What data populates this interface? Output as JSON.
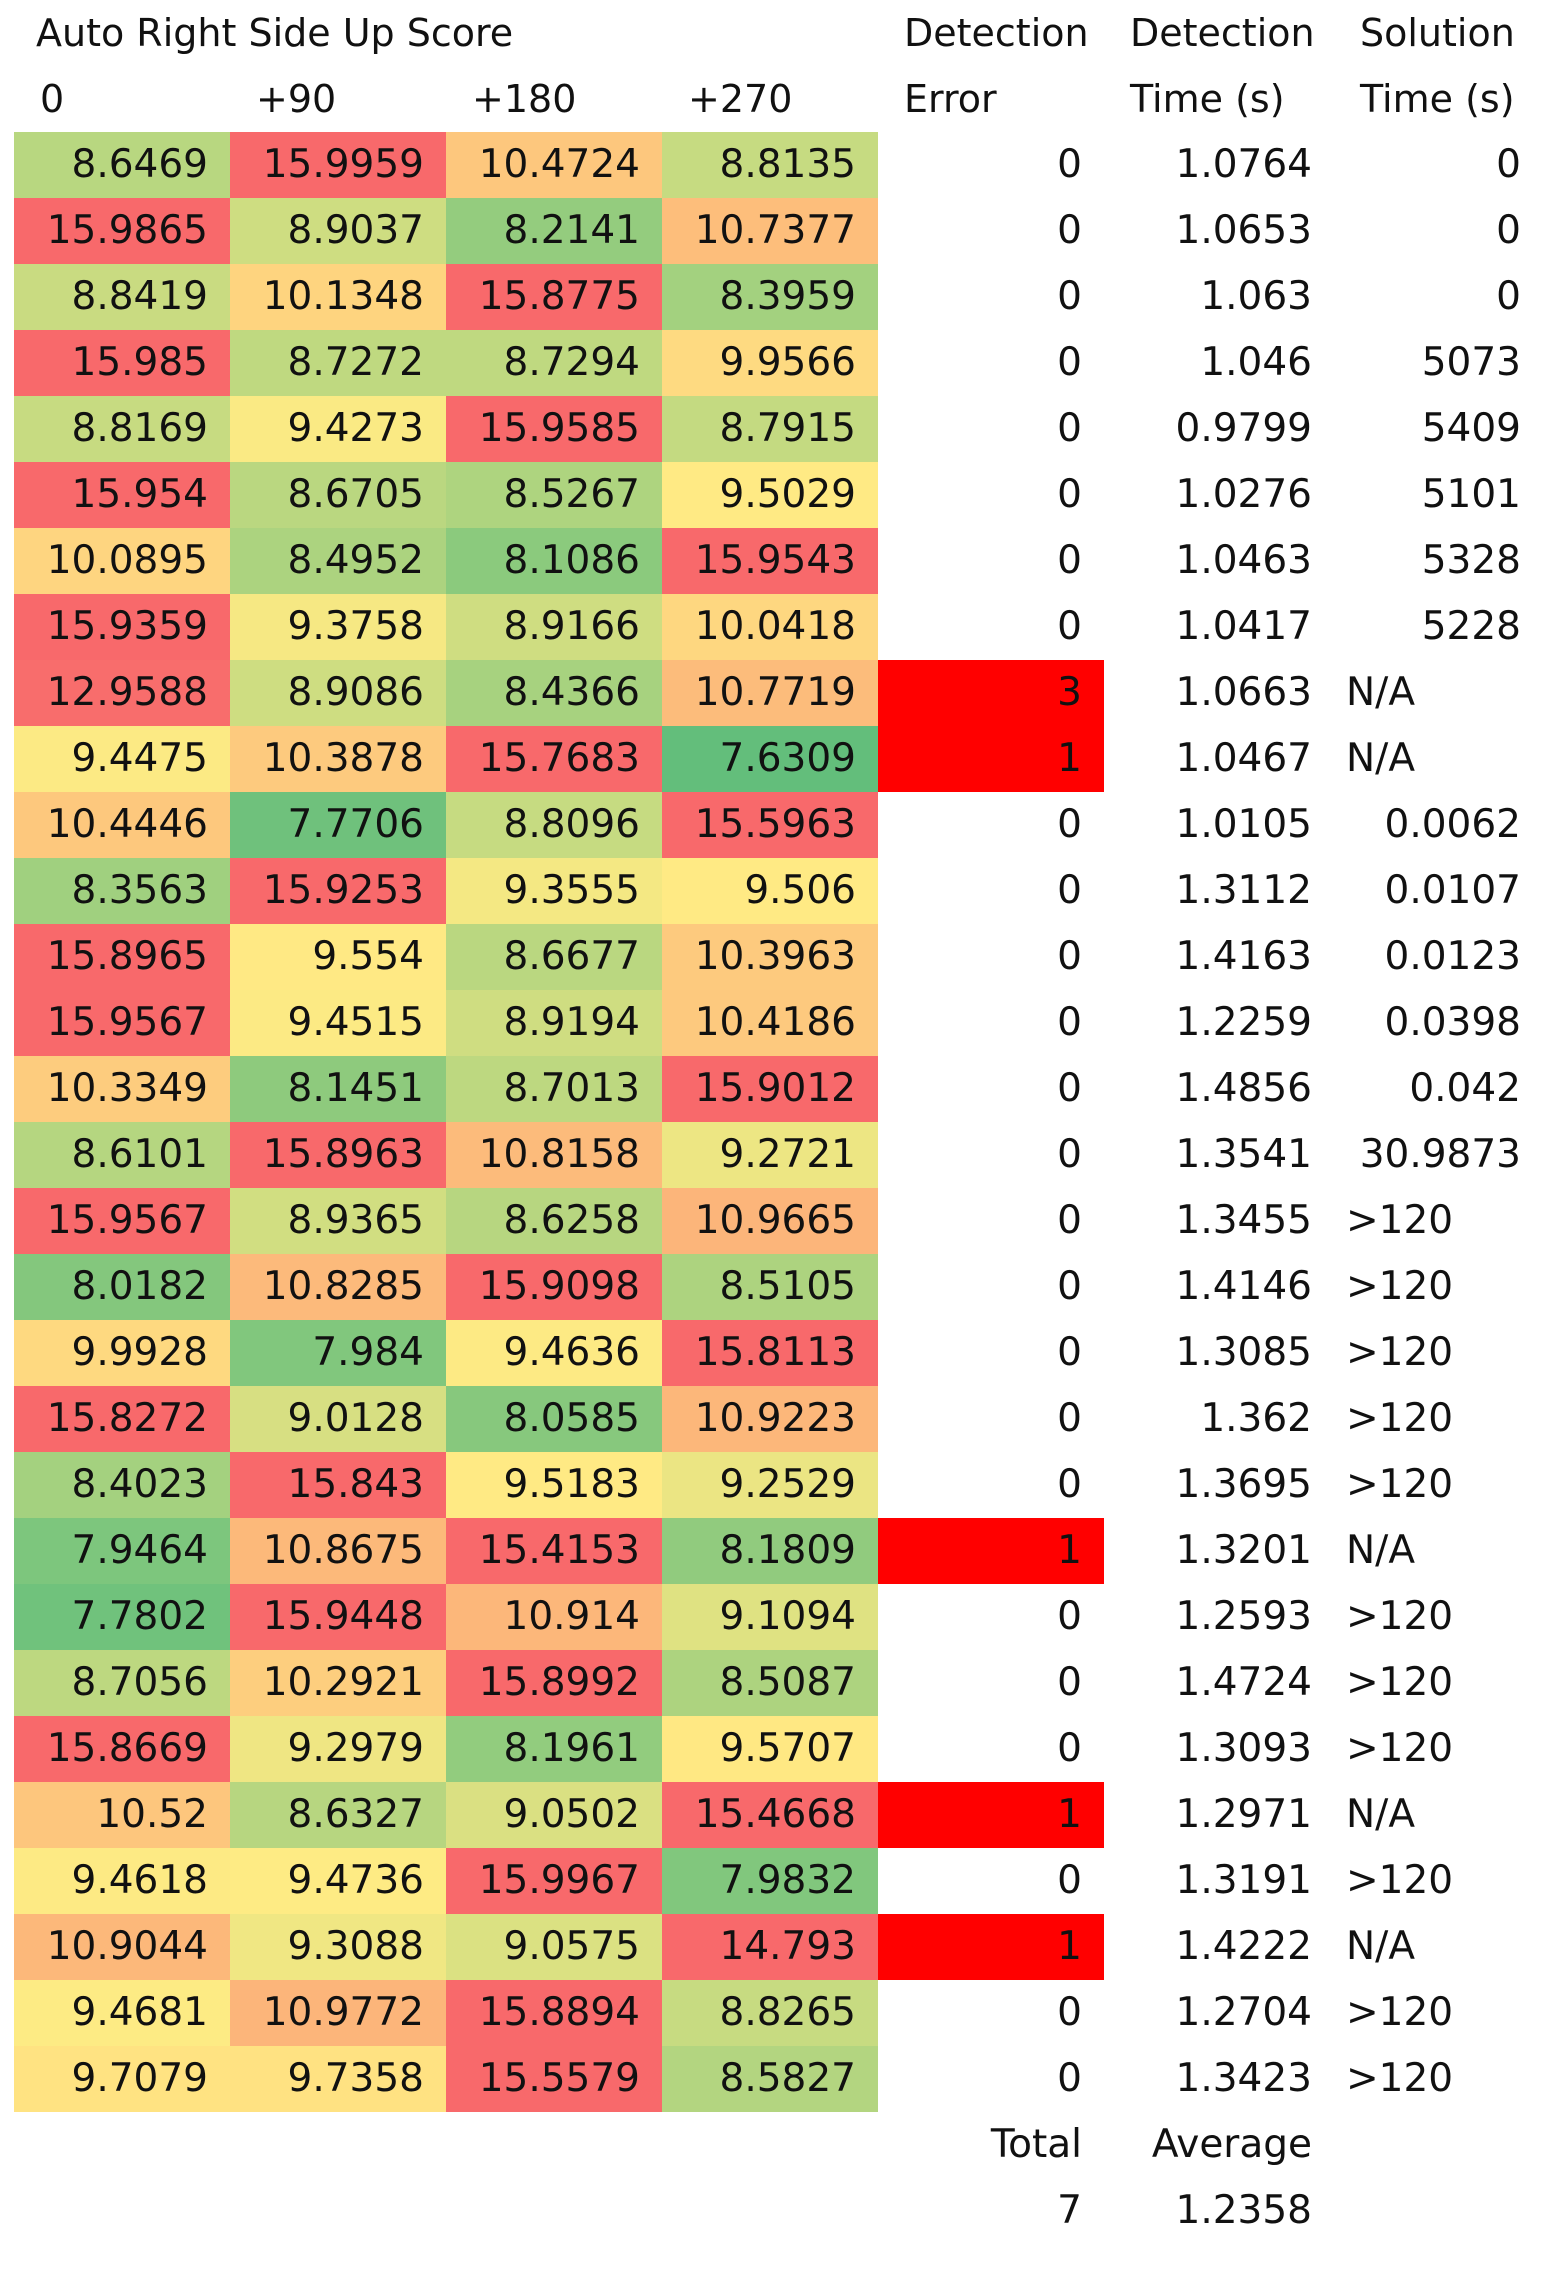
{
  "header": {
    "title": "Auto Right Side Up Score",
    "row1": [
      "",
      "",
      "",
      "",
      "Detection",
      "Detection",
      "Solution"
    ],
    "row2": [
      "0",
      "+90",
      "+180",
      "+270",
      "Error",
      "Time (s)",
      "Time (s)"
    ]
  },
  "colors": {
    "scale_low": "#63BE7B",
    "scale_mid": "#FFEB84",
    "scale_high": "#F8696B",
    "error_fill": "#FF0000"
  },
  "rows": [
    [
      "8.6469",
      "15.9959",
      "10.4724",
      "8.8135",
      "0",
      "1.0764",
      "0"
    ],
    [
      "15.9865",
      "8.9037",
      "8.2141",
      "10.7377",
      "0",
      "1.0653",
      "0"
    ],
    [
      "8.8419",
      "10.1348",
      "15.8775",
      "8.3959",
      "0",
      "1.063",
      "0"
    ],
    [
      "15.985",
      "8.7272",
      "8.7294",
      "9.9566",
      "0",
      "1.046",
      "5073"
    ],
    [
      "8.8169",
      "9.4273",
      "15.9585",
      "8.7915",
      "0",
      "0.9799",
      "5409"
    ],
    [
      "15.954",
      "8.6705",
      "8.5267",
      "9.5029",
      "0",
      "1.0276",
      "5101"
    ],
    [
      "10.0895",
      "8.4952",
      "8.1086",
      "15.9543",
      "0",
      "1.0463",
      "5328"
    ],
    [
      "15.9359",
      "9.3758",
      "8.9166",
      "10.0418",
      "0",
      "1.0417",
      "5228"
    ],
    [
      "12.9588",
      "8.9086",
      "8.4366",
      "10.7719",
      "3",
      "1.0663",
      "N/A"
    ],
    [
      "9.4475",
      "10.3878",
      "15.7683",
      "7.6309",
      "1",
      "1.0467",
      "N/A"
    ],
    [
      "10.4446",
      "7.7706",
      "8.8096",
      "15.5963",
      "0",
      "1.0105",
      "0.0062"
    ],
    [
      "8.3563",
      "15.9253",
      "9.3555",
      "9.506",
      "0",
      "1.3112",
      "0.0107"
    ],
    [
      "15.8965",
      "9.554",
      "8.6677",
      "10.3963",
      "0",
      "1.4163",
      "0.0123"
    ],
    [
      "15.9567",
      "9.4515",
      "8.9194",
      "10.4186",
      "0",
      "1.2259",
      "0.0398"
    ],
    [
      "10.3349",
      "8.1451",
      "8.7013",
      "15.9012",
      "0",
      "1.4856",
      "0.042"
    ],
    [
      "8.6101",
      "15.8963",
      "10.8158",
      "9.2721",
      "0",
      "1.3541",
      "30.9873"
    ],
    [
      "15.9567",
      "8.9365",
      "8.6258",
      "10.9665",
      "0",
      "1.3455",
      ">120"
    ],
    [
      "8.0182",
      "10.8285",
      "15.9098",
      "8.5105",
      "0",
      "1.4146",
      ">120"
    ],
    [
      "9.9928",
      "7.984",
      "9.4636",
      "15.8113",
      "0",
      "1.3085",
      ">120"
    ],
    [
      "15.8272",
      "9.0128",
      "8.0585",
      "10.9223",
      "0",
      "1.362",
      ">120"
    ],
    [
      "8.4023",
      "15.843",
      "9.5183",
      "9.2529",
      "0",
      "1.3695",
      ">120"
    ],
    [
      "7.9464",
      "10.8675",
      "15.4153",
      "8.1809",
      "1",
      "1.3201",
      "N/A"
    ],
    [
      "7.7802",
      "15.9448",
      "10.914",
      "9.1094",
      "0",
      "1.2593",
      ">120"
    ],
    [
      "8.7056",
      "10.2921",
      "15.8992",
      "8.5087",
      "0",
      "1.4724",
      ">120"
    ],
    [
      "15.8669",
      "9.2979",
      "8.1961",
      "9.5707",
      "0",
      "1.3093",
      ">120"
    ],
    [
      "10.52",
      "8.6327",
      "9.0502",
      "15.4668",
      "1",
      "1.2971",
      "N/A"
    ],
    [
      "9.4618",
      "9.4736",
      "15.9967",
      "7.9832",
      "0",
      "1.3191",
      ">120"
    ],
    [
      "10.9044",
      "9.3088",
      "9.0575",
      "14.793",
      "1",
      "1.4222",
      "N/A"
    ],
    [
      "9.4681",
      "10.9772",
      "15.8894",
      "8.8265",
      "0",
      "1.2704",
      ">120"
    ],
    [
      "9.7079",
      "9.7358",
      "15.5579",
      "8.5827",
      "0",
      "1.3423",
      ">120"
    ]
  ],
  "footer": {
    "total_label": "Total",
    "average_label": "Average",
    "total_value": "7",
    "average_value": "1.2358"
  }
}
